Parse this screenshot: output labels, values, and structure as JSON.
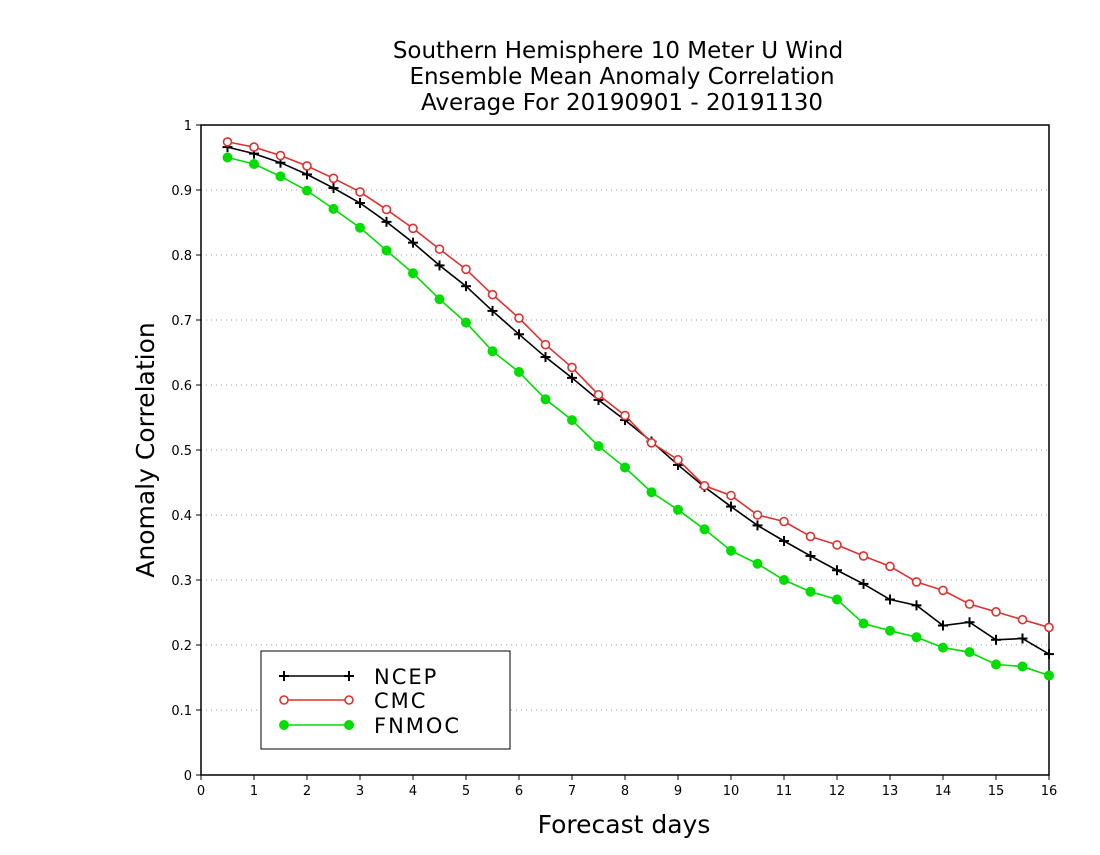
{
  "chart_data": {
    "type": "line",
    "title": [
      "Southern Hemisphere 10 Meter U Wind",
      "Ensemble Mean Anomaly Correlation",
      "Average For 20190901 - 20191130"
    ],
    "xlabel": "Forecast days",
    "ylabel": "Anomaly Correlation",
    "xlim": [
      0,
      16
    ],
    "ylim": [
      0,
      1
    ],
    "x_ticks": [
      0,
      1,
      2,
      3,
      4,
      5,
      6,
      7,
      8,
      9,
      10,
      11,
      12,
      13,
      14,
      15,
      16
    ],
    "x_tick_labels": [
      "0",
      "1",
      "2",
      "3",
      "4",
      "5",
      "6",
      "7",
      "8",
      "9",
      "10",
      "11",
      "12",
      "13",
      "14",
      "15",
      "16"
    ],
    "y_ticks": [
      0,
      0.1,
      0.2,
      0.3,
      0.4,
      0.5,
      0.6,
      0.7,
      0.8,
      0.9,
      1
    ],
    "y_tick_labels": [
      "0",
      "0.1",
      "0.2",
      "0.3",
      "0.4",
      "0.5",
      "0.6",
      "0.7",
      "0.8",
      "0.9",
      "1"
    ],
    "grid": "horizontal dotted",
    "legend_position": "bottom-left",
    "x": [
      0.5,
      1,
      1.5,
      2,
      2.5,
      3,
      3.5,
      4,
      4.5,
      5,
      5.5,
      6,
      6.5,
      7,
      7.5,
      8,
      8.5,
      9,
      9.5,
      10,
      10.5,
      11,
      11.5,
      12,
      12.5,
      13,
      13.5,
      14,
      14.5,
      15,
      15.5,
      16
    ],
    "series": [
      {
        "name": "NCEP",
        "color": "#000000",
        "marker": "plus",
        "values": [
          0.966,
          0.956,
          0.942,
          0.924,
          0.903,
          0.88,
          0.851,
          0.819,
          0.784,
          0.752,
          0.714,
          0.678,
          0.643,
          0.611,
          0.577,
          0.546,
          0.513,
          0.477,
          0.443,
          0.413,
          0.384,
          0.36,
          0.337,
          0.315,
          0.294,
          0.27,
          0.261,
          0.23,
          0.235,
          0.208,
          0.21,
          0.186
        ]
      },
      {
        "name": "CMC",
        "color": "#e03030",
        "marker": "open-circle",
        "values": [
          0.974,
          0.966,
          0.953,
          0.937,
          0.918,
          0.897,
          0.87,
          0.841,
          0.809,
          0.778,
          0.739,
          0.703,
          0.662,
          0.627,
          0.585,
          0.553,
          0.511,
          0.485,
          0.445,
          0.43,
          0.4,
          0.39,
          0.367,
          0.354,
          0.337,
          0.321,
          0.297,
          0.284,
          0.263,
          0.251,
          0.239,
          0.227
        ]
      },
      {
        "name": "FNMOC",
        "color": "#00dd00",
        "marker": "filled-circle",
        "values": [
          0.95,
          0.94,
          0.921,
          0.899,
          0.871,
          0.842,
          0.807,
          0.772,
          0.732,
          0.696,
          0.652,
          0.62,
          0.578,
          0.546,
          0.506,
          0.473,
          0.435,
          0.408,
          0.378,
          0.345,
          0.325,
          0.3,
          0.282,
          0.27,
          0.233,
          0.222,
          0.212,
          0.196,
          0.189,
          0.17,
          0.167,
          0.153
        ]
      }
    ]
  }
}
